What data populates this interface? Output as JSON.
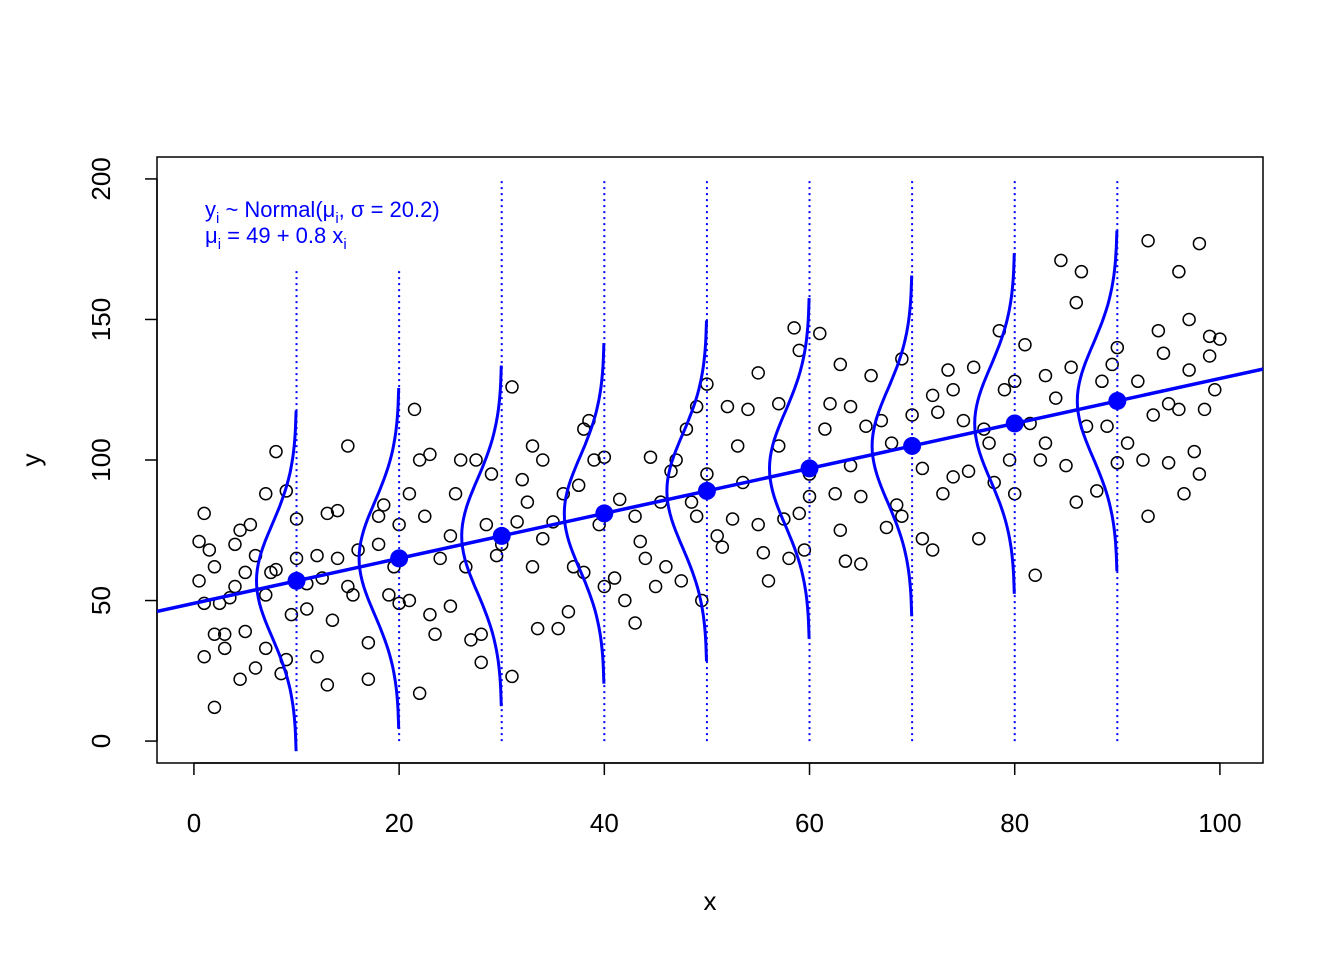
{
  "chart_data": {
    "type": "scatter",
    "x_label": "x",
    "y_label": "y",
    "xlim": [
      -3.6,
      104.2
    ],
    "ylim": [
      -7.8,
      207.8
    ],
    "xticks": [
      0,
      20,
      40,
      60,
      80,
      100
    ],
    "yticks": [
      0,
      50,
      100,
      150,
      200
    ],
    "point_color": "#000000",
    "model_color": "#0000ff",
    "x": [
      0.5,
      1,
      0.5,
      1,
      1,
      1.5,
      2,
      2,
      2,
      2.5,
      3,
      3,
      3.5,
      4,
      4,
      4.5,
      4.5,
      5,
      5,
      5.5,
      6,
      6,
      7,
      7,
      7,
      7.5,
      8,
      8,
      8.5,
      9,
      9,
      9.5,
      10,
      10,
      11,
      11,
      12,
      12,
      12.5,
      13,
      13,
      13.5,
      14,
      14,
      15,
      15,
      15.5,
      16,
      17,
      17,
      18,
      18,
      18.5,
      19,
      19.5,
      20,
      20,
      21,
      21,
      21.5,
      22,
      22,
      22.5,
      23,
      23,
      23.5,
      24,
      25,
      25,
      25.5,
      26,
      26.5,
      27,
      27.5,
      28,
      28,
      28.5,
      29,
      29.5,
      30,
      31,
      31,
      31.5,
      32,
      32.5,
      33,
      33,
      33.5,
      34,
      34,
      35,
      35.5,
      36,
      36.5,
      37,
      37.5,
      38,
      38,
      38.5,
      39,
      39.5,
      40,
      40,
      41,
      41.5,
      42,
      43,
      43,
      43.5,
      44,
      44.5,
      45,
      45.5,
      46,
      46.5,
      47,
      47.5,
      48,
      48.5,
      49,
      49,
      49.5,
      50,
      50,
      51,
      51.5,
      52,
      52.5,
      53,
      53.5,
      54,
      55,
      55,
      55.5,
      56,
      57,
      57,
      57.5,
      58,
      58.5,
      59,
      59,
      59.5,
      60,
      60,
      61,
      61.5,
      62,
      62.5,
      63,
      63,
      63.5,
      64,
      64,
      65,
      65,
      65.5,
      66,
      67,
      67.5,
      68,
      68.5,
      69,
      69,
      70,
      71,
      71,
      72,
      72,
      72.5,
      73,
      73.5,
      74,
      74,
      75,
      75.5,
      76,
      76.5,
      77,
      77.5,
      78,
      78.5,
      79,
      79.5,
      80,
      80,
      81,
      81.5,
      82,
      82.5,
      83,
      83,
      84,
      84.5,
      85,
      85.5,
      86,
      86,
      86.5,
      87,
      88,
      88.5,
      89,
      89.5,
      90,
      90,
      91,
      92,
      92.5,
      93,
      93,
      93.5,
      94,
      94.5,
      95,
      95,
      96,
      96,
      96.5,
      97,
      97,
      97.5,
      98,
      98,
      98.5,
      99,
      99,
      100,
      99.5
    ],
    "values": [
      57,
      81,
      71,
      49,
      30,
      68,
      12,
      62,
      38,
      49,
      33,
      38,
      51,
      55,
      70,
      22,
      75,
      39,
      60,
      77,
      66,
      26,
      52,
      88,
      33,
      60,
      61,
      103,
      24,
      89,
      29,
      45,
      79,
      65,
      47,
      56,
      30,
      66,
      58,
      81,
      20,
      43,
      82,
      65,
      105,
      55,
      52,
      68,
      22,
      35,
      80,
      70,
      84,
      52,
      62,
      49,
      77,
      88,
      50,
      118,
      100,
      17,
      80,
      45,
      102,
      38,
      65,
      48,
      73,
      88,
      100,
      62,
      36,
      100,
      28,
      38,
      77,
      95,
      66,
      70,
      126,
      23,
      78,
      93,
      85,
      105,
      62,
      40,
      100,
      72,
      78,
      40,
      88,
      46,
      62,
      91,
      111,
      60,
      114,
      100,
      77,
      55,
      101,
      58,
      86,
      50,
      42,
      80,
      71,
      65,
      101,
      55,
      85,
      62,
      96,
      100,
      57,
      111,
      85,
      80,
      119,
      50,
      127,
      95,
      73,
      69,
      119,
      79,
      105,
      92,
      118,
      77,
      131,
      67,
      57,
      105,
      120,
      79,
      65,
      147,
      139,
      81,
      68,
      95,
      87,
      145,
      111,
      120,
      88,
      75,
      134,
      64,
      119,
      98,
      87,
      63,
      112,
      130,
      114,
      76,
      106,
      84,
      80,
      136,
      116,
      97,
      72,
      68,
      123,
      117,
      88,
      132,
      94,
      125,
      114,
      96,
      133,
      72,
      111,
      106,
      92,
      146,
      125,
      100,
      88,
      128,
      141,
      113,
      59,
      100,
      130,
      106,
      122,
      171,
      98,
      133,
      85,
      156,
      167,
      112,
      89,
      128,
      112,
      134,
      140,
      99,
      106,
      128,
      100,
      178,
      80,
      116,
      146,
      138,
      120,
      99,
      167,
      118,
      88,
      150,
      132,
      103,
      177,
      95,
      118,
      137,
      144,
      143,
      125
    ],
    "intercept": 49,
    "slope": 0.8,
    "sigma": 20.2,
    "means": {
      "x": [
        10,
        20,
        30,
        40,
        50,
        60,
        70,
        80,
        90
      ],
      "values": [
        57,
        65,
        73,
        81,
        89,
        97,
        105,
        113,
        121
      ]
    },
    "guide_top": [
      168,
      168,
      200,
      200,
      200,
      200,
      200,
      200,
      200
    ],
    "model_text": {
      "y": "y",
      "sub": "i",
      "dist": " ~ Normal(",
      "mu": "μ",
      "sep": ", σ = ",
      "close": ")",
      "eq": " = ",
      "plus": " + ",
      "x": " x"
    }
  }
}
